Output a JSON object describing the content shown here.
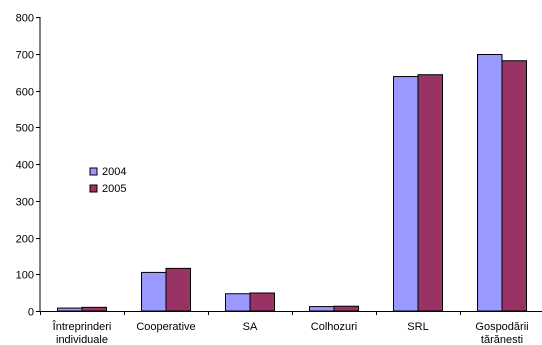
{
  "chart_data": {
    "type": "bar",
    "categories": [
      [
        "Întreprinderi",
        "individuale"
      ],
      [
        "Cooperative"
      ],
      [
        "SA"
      ],
      [
        "Colhozuri"
      ],
      [
        "SRL"
      ],
      [
        "Gospodării",
        "tărănesti"
      ]
    ],
    "series": [
      {
        "name": "2004",
        "color": "#9999ff",
        "values": [
          8,
          105,
          47,
          12,
          638,
          698
        ]
      },
      {
        "name": "2005",
        "color": "#993366",
        "values": [
          10,
          116,
          49,
          13,
          643,
          681
        ]
      }
    ],
    "ylim": [
      0,
      800
    ],
    "yticks": [
      0,
      100,
      200,
      300,
      400,
      500,
      600,
      700,
      800
    ],
    "grid": false,
    "legend_position": "left"
  }
}
